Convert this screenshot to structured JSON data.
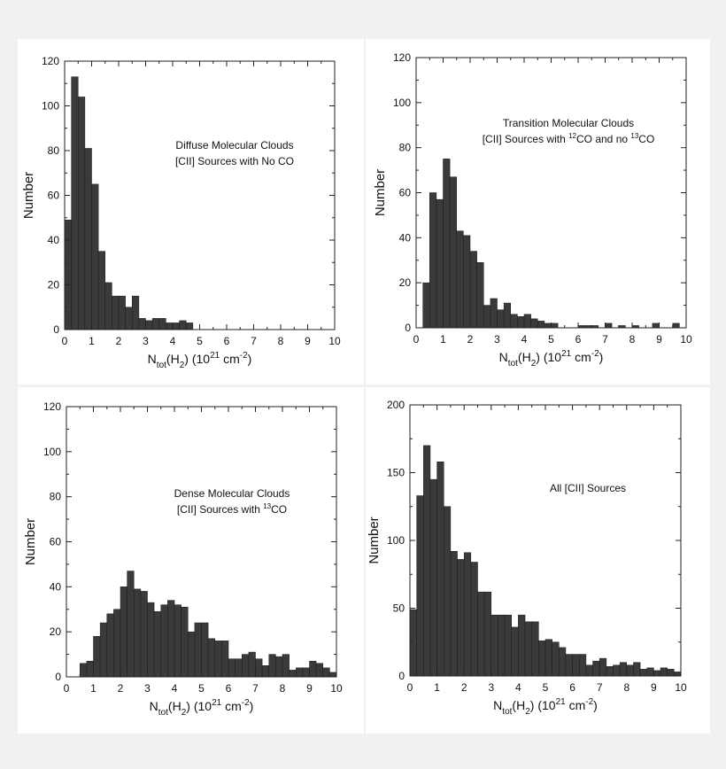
{
  "colors": {
    "bar": "#3a3a3a",
    "axis": "#222222",
    "page_background": "#f1f1f1",
    "panel_background": "#ffffff"
  },
  "chart_data": [
    {
      "type": "bar",
      "annotation": [
        "Diffuse Molecular Clouds",
        "[CII] Sources with No CO"
      ],
      "annotation_rich": [
        [
          {
            "t": "Diffuse Molecular Clouds"
          }
        ],
        [
          {
            "t": "[CII] Sources with No CO"
          }
        ]
      ],
      "ylabel": "Number",
      "xlabel": {
        "main": "N",
        "sub1": "tot",
        "mid": "(H",
        "sub2": "2",
        "close": ") (10",
        "sup1": "21",
        "unit": " cm",
        "sup2": "-2",
        "end": ")"
      },
      "xlim": [
        0,
        10
      ],
      "ylim": [
        0,
        120
      ],
      "x_ticks": [
        0,
        1,
        2,
        3,
        4,
        5,
        6,
        7,
        8,
        9,
        10
      ],
      "y_ticks": [
        0,
        20,
        40,
        60,
        80,
        100,
        120
      ],
      "bin_width": 0.25,
      "bin_starts": [
        0,
        0.25,
        0.5,
        0.75,
        1.0,
        1.25,
        1.5,
        1.75,
        2.0,
        2.25,
        2.5,
        2.75,
        3.0,
        3.25,
        3.5,
        3.75,
        4.0,
        4.25,
        4.5
      ],
      "values": [
        49,
        113,
        104,
        81,
        65,
        35,
        21,
        15,
        15,
        10,
        15,
        5,
        4,
        5,
        5,
        3,
        3,
        4,
        3
      ]
    },
    {
      "type": "bar",
      "annotation": [
        "Transition Molecular Clouds",
        "[CII] Sources with 12CO and no 13CO"
      ],
      "annotation_rich": [
        [
          {
            "t": "Transition Molecular Clouds"
          }
        ],
        [
          {
            "t": "[CII] Sources with "
          },
          {
            "t": "12",
            "sup": true
          },
          {
            "t": "CO and no "
          },
          {
            "t": "13",
            "sup": true
          },
          {
            "t": "CO"
          }
        ]
      ],
      "ylabel": "Number",
      "xlabel": {
        "main": "N",
        "sub1": "tot",
        "mid": "(H",
        "sub2": "2",
        "close": ") (10",
        "sup1": "21",
        "unit": " cm",
        "sup2": "-2",
        "end": ")"
      },
      "xlim": [
        0,
        10
      ],
      "ylim": [
        0,
        120
      ],
      "x_ticks": [
        0,
        1,
        2,
        3,
        4,
        5,
        6,
        7,
        8,
        9,
        10
      ],
      "y_ticks": [
        0,
        20,
        40,
        60,
        80,
        100,
        120
      ],
      "bin_width": 0.25,
      "bin_starts": [
        0.25,
        0.5,
        0.75,
        1.0,
        1.25,
        1.5,
        1.75,
        2.0,
        2.25,
        2.5,
        2.75,
        3.0,
        3.25,
        3.5,
        3.75,
        4.0,
        4.25,
        4.5,
        4.75,
        5.0,
        6.0,
        6.25,
        6.5,
        7.0,
        7.5,
        8.0,
        8.75,
        9.5
      ],
      "values": [
        20,
        60,
        57,
        75,
        67,
        43,
        41,
        34,
        29,
        10,
        13,
        8,
        11,
        6,
        5,
        6,
        4,
        3,
        2,
        2,
        1,
        1,
        1,
        2,
        1,
        1,
        2,
        2
      ]
    },
    {
      "type": "bar",
      "annotation": [
        "Dense Molecular Clouds",
        "[CII] Sources with 13CO"
      ],
      "annotation_rich": [
        [
          {
            "t": "Dense Molecular Clouds"
          }
        ],
        [
          {
            "t": "[CII] Sources with "
          },
          {
            "t": "13",
            "sup": true
          },
          {
            "t": "CO"
          }
        ]
      ],
      "ylabel": "Number",
      "xlabel": {
        "main": "N",
        "sub1": "tot",
        "mid": "(H",
        "sub2": "2",
        "close": ") (10",
        "sup1": "21",
        "unit": " cm",
        "sup2": "-2",
        "end": ")"
      },
      "xlim": [
        0,
        10
      ],
      "ylim": [
        0,
        120
      ],
      "x_ticks": [
        0,
        1,
        2,
        3,
        4,
        5,
        6,
        7,
        8,
        9,
        10
      ],
      "y_ticks": [
        0,
        20,
        40,
        60,
        80,
        100,
        120
      ],
      "bin_width": 0.25,
      "bin_starts": [
        0.5,
        0.75,
        1.0,
        1.25,
        1.5,
        1.75,
        2.0,
        2.25,
        2.5,
        2.75,
        3.0,
        3.25,
        3.5,
        3.75,
        4.0,
        4.25,
        4.5,
        4.75,
        5.0,
        5.25,
        5.5,
        5.75,
        6.0,
        6.25,
        6.5,
        6.75,
        7.0,
        7.25,
        7.5,
        7.75,
        8.0,
        8.25,
        8.5,
        8.75,
        9.0,
        9.25,
        9.5,
        9.75
      ],
      "values": [
        6,
        7,
        18,
        24,
        28,
        30,
        40,
        47,
        39,
        38,
        33,
        29,
        32,
        34,
        32,
        31,
        20,
        24,
        24,
        17,
        16,
        16,
        8,
        8,
        10,
        11,
        8,
        5,
        10,
        9,
        10,
        3,
        4,
        4,
        7,
        6,
        4,
        2
      ]
    },
    {
      "type": "bar",
      "annotation": [
        "All [CII] Sources"
      ],
      "annotation_rich": [
        [
          {
            "t": "All [CII] Sources"
          }
        ]
      ],
      "ylabel": "Number",
      "xlabel": {
        "main": "N",
        "sub1": "tot",
        "mid": "(H",
        "sub2": "2",
        "close": ") (10",
        "sup1": "21",
        "unit": " cm",
        "sup2": "-2",
        "end": ")"
      },
      "xlim": [
        0,
        10
      ],
      "ylim": [
        0,
        200
      ],
      "x_ticks": [
        0,
        1,
        2,
        3,
        4,
        5,
        6,
        7,
        8,
        9,
        10
      ],
      "y_ticks": [
        0,
        50,
        100,
        150,
        200
      ],
      "bin_width": 0.25,
      "bin_starts": [
        0,
        0.25,
        0.5,
        0.75,
        1.0,
        1.25,
        1.5,
        1.75,
        2.0,
        2.25,
        2.5,
        2.75,
        3.0,
        3.25,
        3.5,
        3.75,
        4.0,
        4.25,
        4.5,
        4.75,
        5.0,
        5.25,
        5.5,
        5.75,
        6.0,
        6.25,
        6.5,
        6.75,
        7.0,
        7.25,
        7.5,
        7.75,
        8.0,
        8.25,
        8.5,
        8.75,
        9.0,
        9.25,
        9.5,
        9.75
      ],
      "values": [
        49,
        133,
        170,
        145,
        158,
        125,
        92,
        86,
        91,
        84,
        62,
        62,
        45,
        45,
        45,
        36,
        45,
        40,
        40,
        26,
        27,
        25,
        21,
        16,
        16,
        16,
        8,
        11,
        13,
        7,
        8,
        10,
        8,
        10,
        5,
        6,
        4,
        6,
        5,
        3
      ]
    }
  ]
}
